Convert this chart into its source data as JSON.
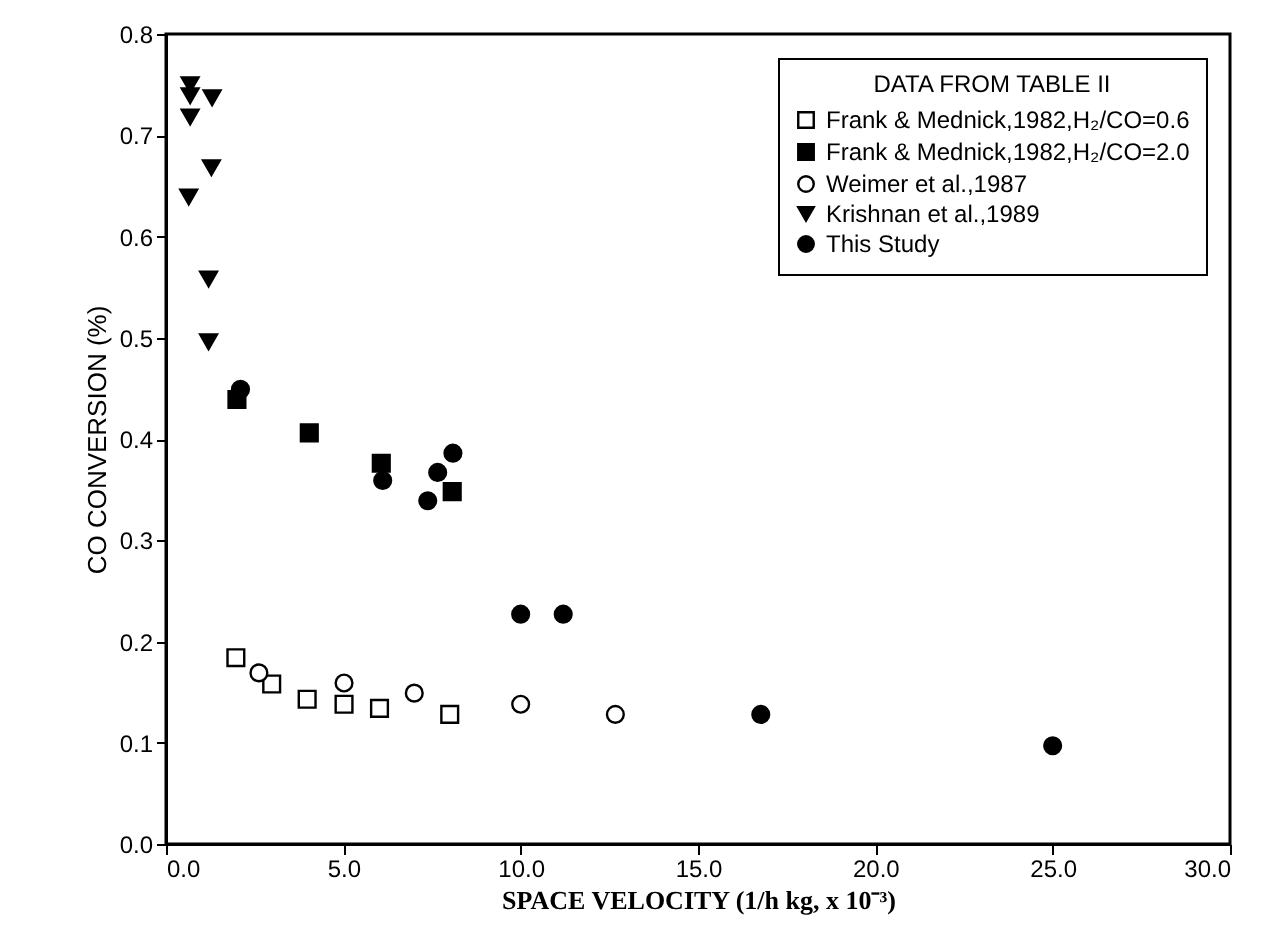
{
  "chart_data": {
    "type": "scatter",
    "xlabel": "SPACE VELOCITY (1/h kg, x 10⁻³)",
    "ylabel": "CO CONVERSION (%)",
    "legend_title": "DATA FROM TABLE II",
    "legend": "top right",
    "grid": false,
    "xlim": [
      0,
      30
    ],
    "ylim": [
      0,
      0.8
    ],
    "xticks": [
      {
        "value": 0,
        "label": "0.0"
      },
      {
        "value": 5,
        "label": "5.0"
      },
      {
        "value": 10,
        "label": "10.0"
      },
      {
        "value": 15,
        "label": "15.0"
      },
      {
        "value": 20,
        "label": "20.0"
      },
      {
        "value": 25,
        "label": "25.0"
      },
      {
        "value": 30,
        "label": "30.0"
      }
    ],
    "yticks": [
      {
        "value": 0,
        "label": "0.0"
      },
      {
        "value": 0.1,
        "label": "0.1"
      },
      {
        "value": 0.2,
        "label": "0.2"
      },
      {
        "value": 0.3,
        "label": "0.3"
      },
      {
        "value": 0.4,
        "label": "0.4"
      },
      {
        "value": 0.5,
        "label": "0.5"
      },
      {
        "value": 0.6,
        "label": "0.6"
      },
      {
        "value": 0.7,
        "label": "0.7"
      },
      {
        "value": 0.8,
        "label": "0.8"
      }
    ],
    "series": [
      {
        "name": "Frank & Mednick,1982,H₂/CO=0.6",
        "color": "#ffffff",
        "marker": "square",
        "x": [
          1.97,
          2.98,
          3.98,
          5.02,
          6.02,
          8.0
        ],
        "values": [
          0.184,
          0.158,
          0.143,
          0.138,
          0.134,
          0.128
        ]
      },
      {
        "name": "Frank & Mednick,1982,H₂/CO=2.0",
        "color": "#000000",
        "marker": "square",
        "x": [
          2.0,
          4.04,
          6.07,
          8.07
        ],
        "values": [
          0.439,
          0.406,
          0.376,
          0.348
        ]
      },
      {
        "name": "Weimer et al.,1987",
        "color": "#ffffff",
        "marker": "circle",
        "x": [
          2.62,
          5.02,
          7.0,
          10.0,
          12.67
        ],
        "values": [
          0.169,
          0.159,
          0.149,
          0.138,
          0.128
        ]
      },
      {
        "name": "Krishnan et al.,1989",
        "color": "#000000",
        "marker": "triangle",
        "x": [
          0.68,
          0.68,
          1.3,
          0.68,
          1.28,
          0.64,
          1.2,
          1.2
        ],
        "values": [
          0.75,
          0.739,
          0.737,
          0.718,
          0.668,
          0.639,
          0.558,
          0.496
        ]
      },
      {
        "name": "This Study",
        "color": "#000000",
        "marker": "circle",
        "x": [
          2.1,
          6.11,
          8.09,
          7.66,
          7.38,
          10.0,
          11.2,
          16.77,
          25.0
        ],
        "values": [
          0.449,
          0.359,
          0.386,
          0.367,
          0.339,
          0.227,
          0.227,
          0.128,
          0.097
        ]
      }
    ]
  }
}
